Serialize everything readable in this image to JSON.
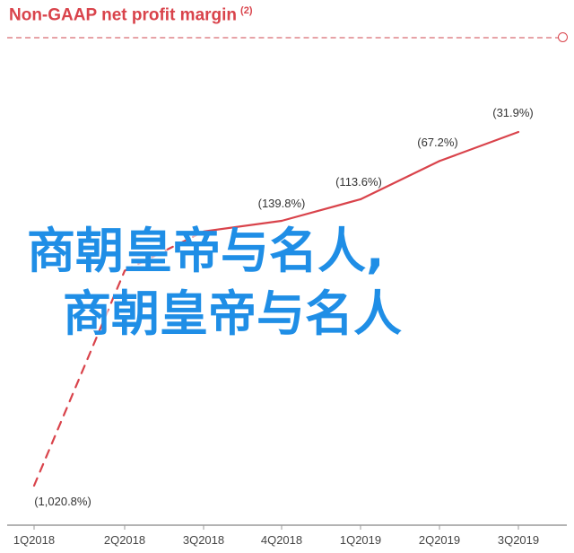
{
  "title": "Non-GAAP net profit margin",
  "title_note": "(2)",
  "overlay": {
    "line1": "商朝皇帝与名人,",
    "line2": "商朝皇帝与名人"
  },
  "colors": {
    "accent": "#d9434b",
    "axis": "#9a9a9a",
    "overlay_text": "#1f8ee6"
  },
  "chart_data": {
    "type": "line",
    "title": "Non-GAAP net profit margin",
    "categories": [
      "1Q2018",
      "2Q2018",
      "3Q2018",
      "4Q2018",
      "1Q2019",
      "2Q2019",
      "3Q2019"
    ],
    "series": [
      {
        "values": [
          -1020.8,
          -306,
          -175,
          -139.8,
          -113.6,
          -67.2,
          -31.9
        ],
        "value_labels": [
          "(1,020.8%)",
          "",
          "",
          "(139.8%)",
          "(113.6%)",
          "(67.2%)",
          "(31.9%)"
        ],
        "dashed_until_index": 1
      }
    ],
    "ylim": [
      -1100,
      0
    ],
    "grid": false,
    "legend": "none"
  }
}
